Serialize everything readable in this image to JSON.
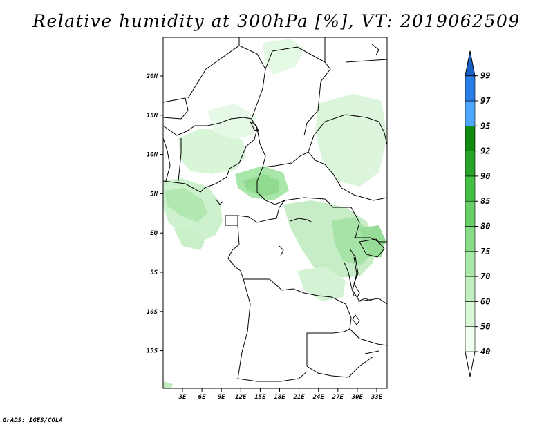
{
  "title": "Relative humidity at 300hPa [%], VT: 2019062509",
  "credit": "GrADS: IGES/COLA",
  "map": {
    "lat_labels": [
      "20N",
      "15N",
      "10N",
      "5N",
      "EQ",
      "5S",
      "10S",
      "15S"
    ],
    "lon_labels": [
      "3E",
      "6E",
      "9E",
      "12E",
      "15E",
      "18E",
      "21E",
      "24E",
      "27E",
      "30E",
      "33E"
    ]
  },
  "colorbar": {
    "levels": [
      "40",
      "50",
      "60",
      "70",
      "75",
      "80",
      "85",
      "90",
      "92",
      "95",
      "97",
      "99"
    ],
    "colors": [
      "#f0fff0",
      "#d8f8d8",
      "#c0f0c0",
      "#a8e8a8",
      "#88dc88",
      "#66d066",
      "#44c044",
      "#28a428",
      "#128a12",
      "#4da6ff",
      "#2a7fe6",
      "#1a5fc8"
    ],
    "low_arrow_color": "#ffffff",
    "high_arrow_color": "#1a5fc8"
  }
}
